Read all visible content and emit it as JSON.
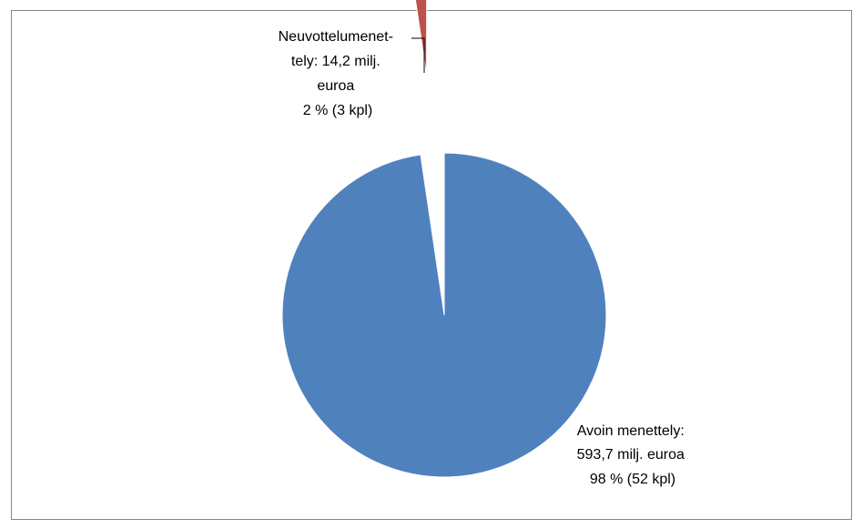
{
  "chart_data": {
    "type": "pie",
    "title": "",
    "slices": [
      {
        "name": "Avoin menettely",
        "value": 593.7,
        "percent": 98,
        "count": 52,
        "color": "#4F81BD",
        "exploded": false,
        "label_lines": [
          "Avoin menettely:",
          "593,7 milj. euroa",
          "98 % (52 kpl)"
        ]
      },
      {
        "name": "Neuvottelumenettely",
        "value": 14.2,
        "percent": 2,
        "count": 3,
        "color": "#C0504D",
        "exploded": true,
        "label_lines": [
          "Neuvottelumenet-",
          "tely: 14,2 milj.",
          "euroa",
          "2 % (3 kpl)"
        ]
      }
    ],
    "start_angle": "12 o'clock",
    "direction": "clockwise",
    "legend": "none"
  }
}
